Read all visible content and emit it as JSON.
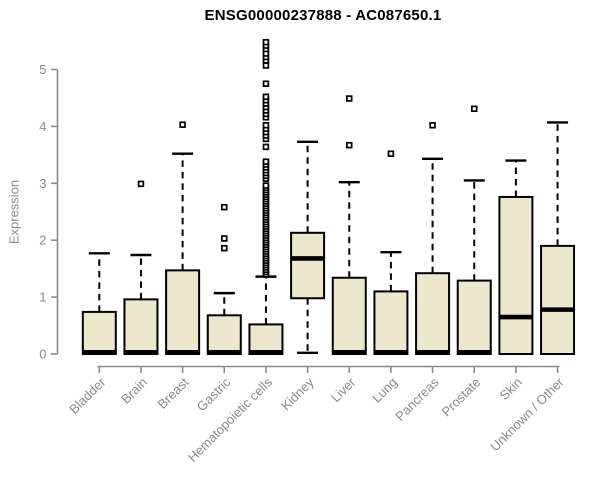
{
  "chart_data": {
    "type": "boxplot",
    "title": "ENSG00000237888 - AC087650.1",
    "ylabel": "Expression",
    "xlabel": "",
    "ylim": [
      0,
      5.5
    ],
    "yticks": [
      0,
      1,
      2,
      3,
      4,
      5
    ],
    "grid": false,
    "legend": "none",
    "colors": {
      "box_fill": "#ECE7CD",
      "box_border": "#000000",
      "median": "#000000",
      "whisker": "#000000",
      "outlier": "#000000",
      "axis": "#8B8B8B",
      "tick_label": "#8B8B8B",
      "title": "#000000",
      "background": "#FFFFFF"
    },
    "categories": [
      "Bladder",
      "Brain",
      "Breast",
      "Gastric",
      "Hematopoietic cells",
      "Kidney",
      "Liver",
      "Lung",
      "Pancreas",
      "Prostate",
      "Skin",
      "Unknown / Other"
    ],
    "series": [
      {
        "name": "Bladder",
        "whisker_low": 0,
        "q1": 0,
        "median": 0.03,
        "q3": 0.74,
        "whisker_high": 1.77,
        "outliers": []
      },
      {
        "name": "Brain",
        "whisker_low": 0,
        "q1": 0,
        "median": 0.03,
        "q3": 0.96,
        "whisker_high": 1.74,
        "outliers": [
          2.99
        ]
      },
      {
        "name": "Breast",
        "whisker_low": 0,
        "q1": 0,
        "median": 0.03,
        "q3": 1.47,
        "whisker_high": 3.52,
        "outliers": [
          4.03
        ]
      },
      {
        "name": "Gastric",
        "whisker_low": 0,
        "q1": 0,
        "median": 0.03,
        "q3": 0.68,
        "whisker_high": 1.07,
        "outliers": [
          1.86,
          2.03,
          2.58
        ]
      },
      {
        "name": "Hematopoietic cells",
        "whisker_low": 0,
        "q1": 0,
        "median": 0.03,
        "q3": 0.52,
        "whisker_high": 1.36,
        "outliers": [
          1.4,
          1.44,
          1.48,
          1.52,
          1.56,
          1.6,
          1.64,
          1.68,
          1.72,
          1.76,
          1.8,
          1.84,
          1.88,
          1.92,
          1.96,
          2.0,
          2.04,
          2.08,
          2.12,
          2.16,
          2.2,
          2.24,
          2.28,
          2.32,
          2.36,
          2.4,
          2.44,
          2.48,
          2.52,
          2.56,
          2.6,
          2.64,
          2.68,
          2.72,
          2.76,
          2.8,
          2.84,
          2.88,
          2.92,
          2.96,
          3.08,
          3.13,
          3.18,
          3.23,
          3.28,
          3.33,
          3.38,
          3.64,
          3.78,
          3.84,
          3.9,
          3.96,
          4.02,
          4.16,
          4.22,
          4.28,
          4.34,
          4.4,
          4.46,
          4.52,
          4.75,
          5.07,
          5.16,
          5.22,
          5.28,
          5.36,
          5.42,
          5.48
        ]
      },
      {
        "name": "Kidney",
        "whisker_low": 0.02,
        "q1": 0.98,
        "median": 1.68,
        "q3": 2.13,
        "whisker_high": 3.73,
        "outliers": []
      },
      {
        "name": "Liver",
        "whisker_low": 0,
        "q1": 0,
        "median": 0.03,
        "q3": 1.34,
        "whisker_high": 3.02,
        "outliers": [
          3.67,
          4.49
        ]
      },
      {
        "name": "Lung",
        "whisker_low": 0,
        "q1": 0,
        "median": 0.03,
        "q3": 1.1,
        "whisker_high": 1.79,
        "outliers": [
          3.52
        ]
      },
      {
        "name": "Pancreas",
        "whisker_low": 0,
        "q1": 0,
        "median": 0.03,
        "q3": 1.42,
        "whisker_high": 3.43,
        "outliers": [
          4.02
        ]
      },
      {
        "name": "Prostate",
        "whisker_low": 0,
        "q1": 0,
        "median": 0.03,
        "q3": 1.29,
        "whisker_high": 3.05,
        "outliers": [
          4.31
        ]
      },
      {
        "name": "Skin",
        "whisker_low": 0,
        "q1": 0,
        "median": 0.65,
        "q3": 2.76,
        "whisker_high": 3.4,
        "outliers": []
      },
      {
        "name": "Unknown / Other",
        "whisker_low": 0,
        "q1": 0,
        "median": 0.78,
        "q3": 1.9,
        "whisker_high": 4.07,
        "outliers": []
      }
    ]
  }
}
